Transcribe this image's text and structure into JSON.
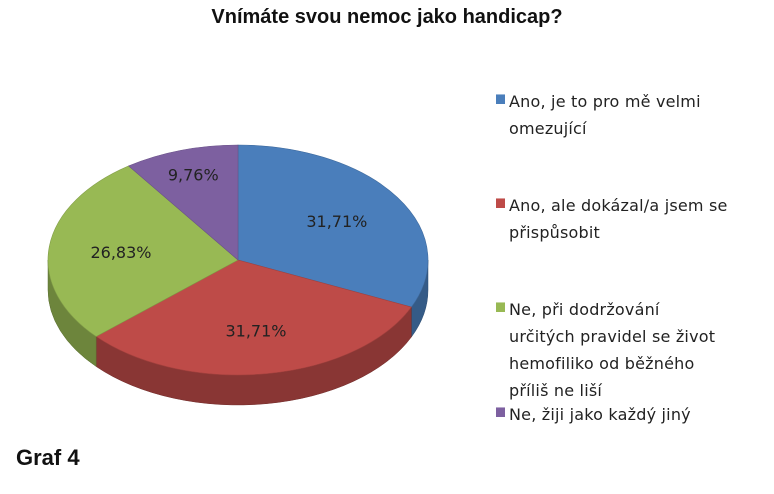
{
  "chart_data": {
    "type": "pie",
    "title": "Vnímáte svou nemoc jako handicap?",
    "slices": [
      {
        "label": "Ano, je to pro mě velmi omezující",
        "value": 31.71,
        "display": "31,71%",
        "color": "#4a7ebb"
      },
      {
        "label": "Ano, ale dokázal/a jsem se přispůsobit",
        "value": 31.71,
        "display": "31,71%",
        "color": "#be4b48"
      },
      {
        "label": "Ne, při dodržování určitých pravidel se život hemofiliko od běžného příliš neliší",
        "value": 26.83,
        "display": "26,83%",
        "color": "#98b954"
      },
      {
        "label": "Ne, žiji jako každý jiný",
        "value": 9.76,
        "display": "9,76%",
        "color": "#7d60a0"
      }
    ],
    "legend_position": "right",
    "style": "3d"
  },
  "legend": {
    "items": [
      {
        "lines": [
          "Ano, je to pro mě velmi",
          "omezující"
        ]
      },
      {
        "lines": [
          "Ano, ale dokázal/a jsem se",
          "přispůsobit"
        ]
      },
      {
        "lines": [
          "Ne, při dodržování",
          "určitých pravidel se život",
          "hemofiliko od běžného",
          "příliš ne liší"
        ]
      },
      {
        "lines": [
          "Ne, žiji jako každý jiný"
        ]
      }
    ]
  },
  "footnote": "Graf 4"
}
